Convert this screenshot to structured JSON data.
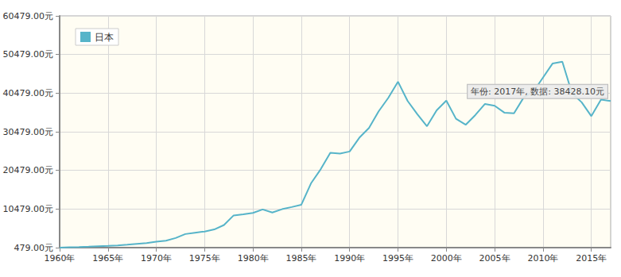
{
  "chart_data": {
    "type": "line",
    "legend": "upper left",
    "grid": true,
    "x": [
      1960,
      1961,
      1962,
      1963,
      1964,
      1965,
      1966,
      1967,
      1968,
      1969,
      1970,
      1971,
      1972,
      1973,
      1974,
      1975,
      1976,
      1977,
      1978,
      1979,
      1980,
      1981,
      1982,
      1983,
      1984,
      1985,
      1986,
      1987,
      1988,
      1989,
      1990,
      1991,
      1992,
      1993,
      1994,
      1995,
      1996,
      1997,
      1998,
      1999,
      2000,
      2001,
      2002,
      2003,
      2004,
      2005,
      2006,
      2007,
      2008,
      2009,
      2010,
      2011,
      2012,
      2013,
      2014,
      2015,
      2016,
      2017
    ],
    "series": [
      {
        "name": "日本",
        "color": "#56b4c9",
        "values": [
          479,
          564,
          633,
          718,
          835,
          919,
          1058,
          1229,
          1450,
          1669,
          2037,
          2272,
          2967,
          3997,
          4354,
          4659,
          5197,
          6335,
          8821,
          9105,
          9463,
          10361,
          9578,
          10425,
          10984,
          11585,
          17112,
          20745,
          25051,
          24813,
          25371,
          28925,
          31465,
          35766,
          39269,
          43440,
          38437,
          35022,
          31903,
          36026,
          38532,
          33846,
          32289,
          34808,
          37688,
          37218,
          35434,
          35275,
          39339,
          40855,
          44508,
          48168,
          48603,
          40454,
          38109,
          34524,
          38794,
          38428.1
        ]
      }
    ],
    "xlim": [
      1960,
      2017
    ],
    "xticks": [
      {
        "value": 1960,
        "label": "1960年"
      },
      {
        "value": 1965,
        "label": "1965年"
      },
      {
        "value": 1970,
        "label": "1970年"
      },
      {
        "value": 1975,
        "label": "1975年"
      },
      {
        "value": 1980,
        "label": "1980年"
      },
      {
        "value": 1985,
        "label": "1985年"
      },
      {
        "value": 1990,
        "label": "1990年"
      },
      {
        "value": 1995,
        "label": "1995年"
      },
      {
        "value": 2000,
        "label": "2000年"
      },
      {
        "value": 2005,
        "label": "2005年"
      },
      {
        "value": 2010,
        "label": "2010年"
      },
      {
        "value": 2015,
        "label": "2015年"
      }
    ],
    "ylim": [
      479,
      60479
    ],
    "yticks": [
      {
        "value": 479,
        "label": "479.00元"
      },
      {
        "value": 10479,
        "label": "10479.00元"
      },
      {
        "value": 20479,
        "label": "20479.00元"
      },
      {
        "value": 30479,
        "label": "30479.00元"
      },
      {
        "value": 40479,
        "label": "40479.00元"
      },
      {
        "value": 50479,
        "label": "50479.00元"
      },
      {
        "value": 60479,
        "label": "60479.00元"
      }
    ],
    "annotations": [
      {
        "text": "年份: 2017年, 数据: 38428.10元",
        "x": 2017,
        "y": 38428.1
      }
    ]
  }
}
